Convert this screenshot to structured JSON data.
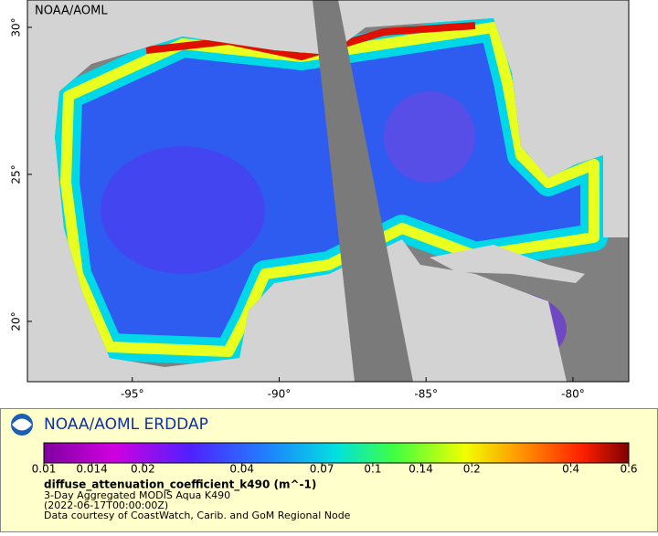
{
  "map": {
    "watermark": "NOAA/AOML",
    "xlim": [
      -98.57,
      -78.1
    ],
    "ylim": [
      17.95,
      30.93
    ],
    "xticks": [
      {
        "value": -95,
        "label": "-95°"
      },
      {
        "value": -90,
        "label": "-90°"
      },
      {
        "value": -85,
        "label": "-85°"
      },
      {
        "value": -80,
        "label": "-80°"
      }
    ],
    "yticks": [
      {
        "value": 20,
        "label": "20°"
      },
      {
        "value": 25,
        "label": "25°"
      },
      {
        "value": 30,
        "label": "30°"
      }
    ]
  },
  "legend": {
    "title": "NOAA/AOML ERDDAP",
    "colorbar": {
      "scale": "log",
      "range": [
        0.01,
        0.6
      ],
      "ticks": [
        0.01,
        0.014,
        0.02,
        0.04,
        0.07,
        0.1,
        0.14,
        0.2,
        0.4,
        0.6
      ]
    },
    "variable": "diffuse_attenuation_coefficient_k490 (m^-1)",
    "lines": [
      "3-Day Aggregated MODIS Aqua K490",
      "(2022-06-17T00:00:00Z)",
      "Data courtesy of CoastWatch, Carib. and GoM Regional Node"
    ]
  }
}
